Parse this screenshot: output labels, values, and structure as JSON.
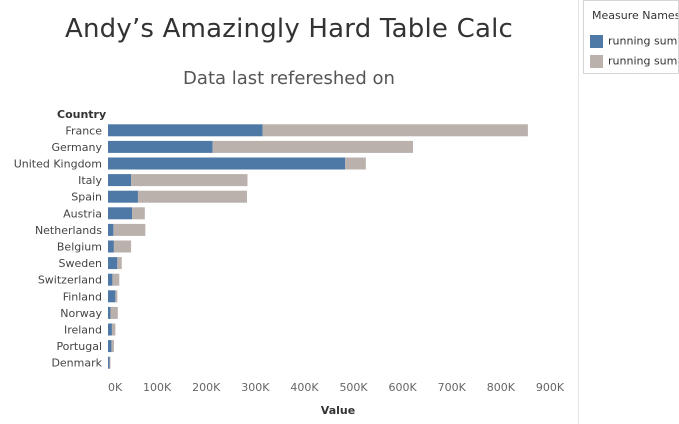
{
  "chart_data": {
    "type": "bar",
    "orientation": "horizontal",
    "stacked": true,
    "title": "Andy’s Amazingly Hard Table Calc",
    "subtitle": "Data last refereshed on",
    "category_axis_label": "Country",
    "value_axis_label": "Value",
    "categories": [
      "France",
      "Germany",
      "United Kingdom",
      "Italy",
      "Spain",
      "Austria",
      "Netherlands",
      "Belgium",
      "Sweden",
      "Switzerland",
      "Finland",
      "Norway",
      "Ireland",
      "Portugal",
      "Denmark"
    ],
    "series": [
      {
        "name": "running sum",
        "color": "#4e79a7",
        "values": [
          315000,
          213000,
          483000,
          47000,
          61000,
          49000,
          11000,
          12000,
          19000,
          9000,
          15000,
          5000,
          8000,
          7000,
          3000
        ]
      },
      {
        "name": "running sum",
        "color": "#bab0ac",
        "values": [
          540000,
          408000,
          42000,
          237000,
          222000,
          26000,
          65000,
          35000,
          9000,
          14000,
          4000,
          15000,
          7000,
          5000,
          2000
        ]
      }
    ],
    "xlim": [
      0,
      900000
    ],
    "x_ticks": [
      0,
      100000,
      200000,
      300000,
      400000,
      500000,
      600000,
      700000,
      800000,
      900000
    ],
    "x_tick_labels": [
      "0K",
      "100K",
      "200K",
      "300K",
      "400K",
      "500K",
      "600K",
      "700K",
      "800K",
      "900K"
    ],
    "legend": {
      "title": "Measure Names",
      "placement": "top-right",
      "items": [
        "running sum",
        "running sum"
      ]
    },
    "grid": false
  }
}
